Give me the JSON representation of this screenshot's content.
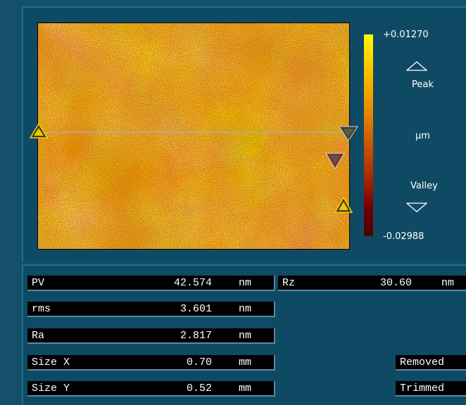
{
  "scale": {
    "max_label": "+0.01270",
    "min_label": "-0.02988",
    "peak_label": "Peak",
    "unit_label": "µm",
    "valley_label": "Valley"
  },
  "colors": {
    "background": "#14506a",
    "panel": "#0f4a64",
    "field_bg": "#000000",
    "field_text": "#ffffff",
    "marker_fill": "#ffd700",
    "marker_outline": "#333333"
  },
  "metrics": [
    {
      "name": "PV",
      "value": "42.574",
      "unit": "nm"
    },
    {
      "name": "rms",
      "value": "3.601",
      "unit": "nm"
    },
    {
      "name": "Ra",
      "value": "2.817",
      "unit": "nm"
    },
    {
      "name": "Size X",
      "value": "0.70",
      "unit": "mm"
    },
    {
      "name": "Size Y",
      "value": "0.52",
      "unit": "mm"
    }
  ],
  "rz": {
    "name": "Rz",
    "value": "30.60",
    "unit": "nm"
  },
  "flags": {
    "removed": "Removed",
    "trimmed": "Trimmed"
  },
  "icons": {
    "peak": "up-triangle-outline-icon",
    "valley": "down-triangle-outline-icon",
    "profile_start": "profile-start-marker-icon",
    "profile_end": "profile-end-marker-icon"
  }
}
